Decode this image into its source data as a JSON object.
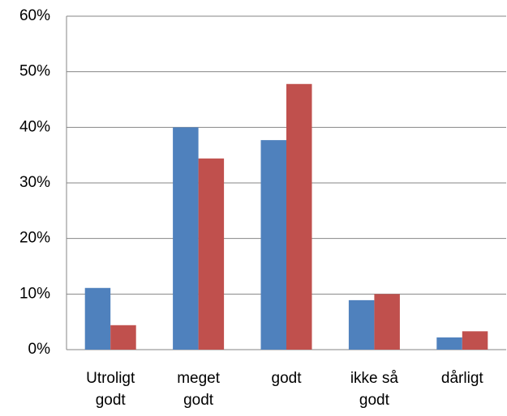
{
  "chart_data": {
    "type": "bar",
    "categories": [
      "Utroligt godt",
      "meget godt",
      "godt",
      "ikke så godt",
      "dårligt"
    ],
    "series": [
      {
        "color": "#4f81bd",
        "values": [
          11.1,
          40,
          37.7,
          8.9,
          2.2
        ]
      },
      {
        "color": "#c0504d",
        "values": [
          4.4,
          34.4,
          47.8,
          10,
          3.3
        ]
      }
    ],
    "ylim": [
      0,
      60
    ],
    "yticks": [
      {
        "value": 0,
        "label": "0%"
      },
      {
        "value": 10,
        "label": "10%"
      },
      {
        "value": 20,
        "label": "20%"
      },
      {
        "value": 30,
        "label": "30%"
      },
      {
        "value": 40,
        "label": "40%"
      },
      {
        "value": 50,
        "label": "50%"
      },
      {
        "value": 60,
        "label": "60%"
      }
    ],
    "grid": true
  }
}
